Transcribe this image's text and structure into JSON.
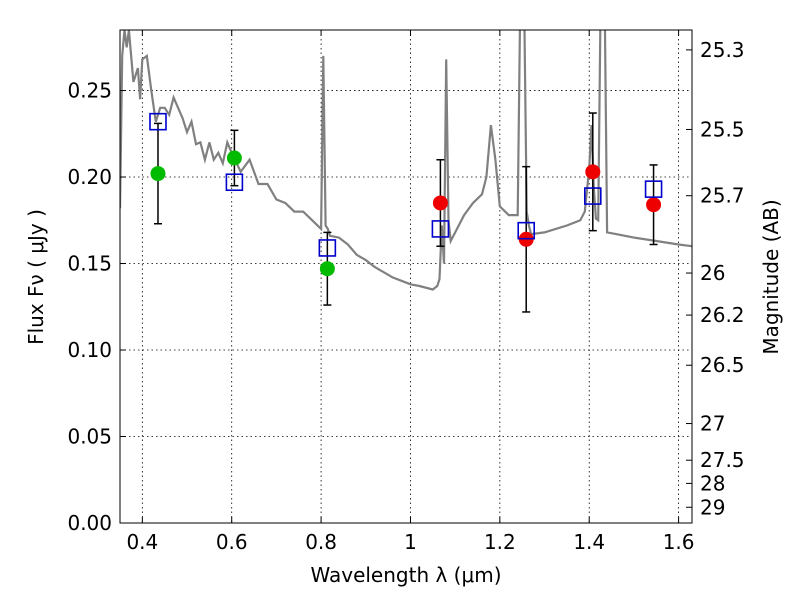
{
  "chart_data": {
    "type": "scatter",
    "xlabel": "Wavelength  λ (μm)",
    "ylabel": "Flux  Fν  ( μJy )",
    "y2label": "Magnitude (AB)",
    "xlim": [
      0.35,
      1.63
    ],
    "ylim": [
      0.0,
      0.285
    ],
    "x_ticks": [
      0.4,
      0.6,
      0.8,
      1.0,
      1.2,
      1.4,
      1.6
    ],
    "x_tick_labels": [
      "0.4",
      "0.6",
      "0.8",
      "1",
      "1.2",
      "1.4",
      "1.6"
    ],
    "y_ticks": [
      0.0,
      0.05,
      0.1,
      0.15,
      0.2,
      0.25
    ],
    "y_tick_labels": [
      "0.00",
      "0.05",
      "0.10",
      "0.15",
      "0.20",
      "0.25"
    ],
    "magnitude_ticks": [
      {
        "label": "25.3",
        "flux": 0.2735
      },
      {
        "label": "25.5",
        "flux": 0.2275
      },
      {
        "label": "25.7",
        "flux": 0.1892
      },
      {
        "label": "26",
        "flux": 0.1445
      },
      {
        "label": "26.2",
        "flux": 0.1202
      },
      {
        "label": "26.5",
        "flux": 0.0912
      },
      {
        "label": "27",
        "flux": 0.0575
      },
      {
        "label": "27.5",
        "flux": 0.0363
      },
      {
        "label": "28",
        "flux": 0.0229
      },
      {
        "label": "29",
        "flux": 0.0091
      }
    ],
    "grid": true,
    "colors": {
      "model_spectrum": "#808080",
      "green_points": "#00bb00",
      "red_points": "#ee0000",
      "model_boxes": "#0000cc",
      "error_bars": "#000000"
    },
    "series": [
      {
        "marker": "circle",
        "color": "#00bb00",
        "x": [
          0.435,
          0.606,
          0.814
        ],
        "y": [
          0.202,
          0.211,
          0.147
        ],
        "yerr": [
          0.029,
          0.016,
          0.021
        ]
      },
      {
        "marker": "circle",
        "color": "#ee0000",
        "x": [
          1.067,
          1.259,
          1.408,
          1.544
        ],
        "y": [
          0.185,
          0.164,
          0.203,
          0.184
        ],
        "yerr": [
          0.025,
          0.042,
          0.034,
          0.023
        ]
      },
      {
        "marker": "open-square",
        "color": "#0000cc",
        "x": [
          0.435,
          0.606,
          0.814,
          1.067,
          1.259,
          1.408,
          1.544
        ],
        "y": [
          0.232,
          0.197,
          0.159,
          0.17,
          0.169,
          0.189,
          0.193
        ]
      },
      {
        "marker": "line",
        "color": "#808080",
        "x": [
          0.35,
          0.355,
          0.36,
          0.365,
          0.37,
          0.38,
          0.39,
          0.395,
          0.4,
          0.41,
          0.42,
          0.43,
          0.44,
          0.45,
          0.46,
          0.47,
          0.48,
          0.49,
          0.5,
          0.51,
          0.52,
          0.53,
          0.54,
          0.55,
          0.56,
          0.57,
          0.58,
          0.59,
          0.6,
          0.62,
          0.64,
          0.66,
          0.68,
          0.7,
          0.72,
          0.74,
          0.76,
          0.78,
          0.8,
          0.805,
          0.81,
          0.815,
          0.82,
          0.84,
          0.86,
          0.88,
          0.9,
          0.92,
          0.94,
          0.96,
          0.98,
          1.0,
          1.02,
          1.05,
          1.06,
          1.065,
          1.07,
          1.075,
          1.08,
          1.085,
          1.09,
          1.1,
          1.12,
          1.14,
          1.16,
          1.17,
          1.18,
          1.19,
          1.2,
          1.22,
          1.24,
          1.245,
          1.25,
          1.255,
          1.26,
          1.265,
          1.27,
          1.3,
          1.35,
          1.38,
          1.39,
          1.4,
          1.405,
          1.41,
          1.415,
          1.42,
          1.425,
          1.43,
          1.435,
          1.44,
          1.46,
          1.5,
          1.55,
          1.6,
          1.63
        ],
        "y": [
          0.182,
          0.27,
          0.285,
          0.275,
          0.285,
          0.255,
          0.263,
          0.245,
          0.268,
          0.27,
          0.25,
          0.232,
          0.24,
          0.24,
          0.236,
          0.246,
          0.24,
          0.234,
          0.226,
          0.232,
          0.219,
          0.22,
          0.21,
          0.22,
          0.21,
          0.214,
          0.208,
          0.22,
          0.214,
          0.203,
          0.21,
          0.196,
          0.196,
          0.187,
          0.185,
          0.18,
          0.18,
          0.175,
          0.17,
          0.27,
          0.172,
          0.17,
          0.166,
          0.165,
          0.161,
          0.155,
          0.152,
          0.148,
          0.145,
          0.142,
          0.14,
          0.138,
          0.137,
          0.135,
          0.137,
          0.141,
          0.172,
          0.15,
          0.268,
          0.175,
          0.163,
          0.168,
          0.178,
          0.185,
          0.19,
          0.2,
          0.23,
          0.21,
          0.183,
          0.178,
          0.178,
          0.29,
          0.29,
          0.29,
          0.18,
          0.172,
          0.167,
          0.168,
          0.172,
          0.175,
          0.18,
          0.205,
          0.23,
          0.195,
          0.176,
          0.175,
          0.29,
          0.29,
          0.29,
          0.168,
          0.167,
          0.165,
          0.163,
          0.161,
          0.16
        ]
      }
    ]
  }
}
